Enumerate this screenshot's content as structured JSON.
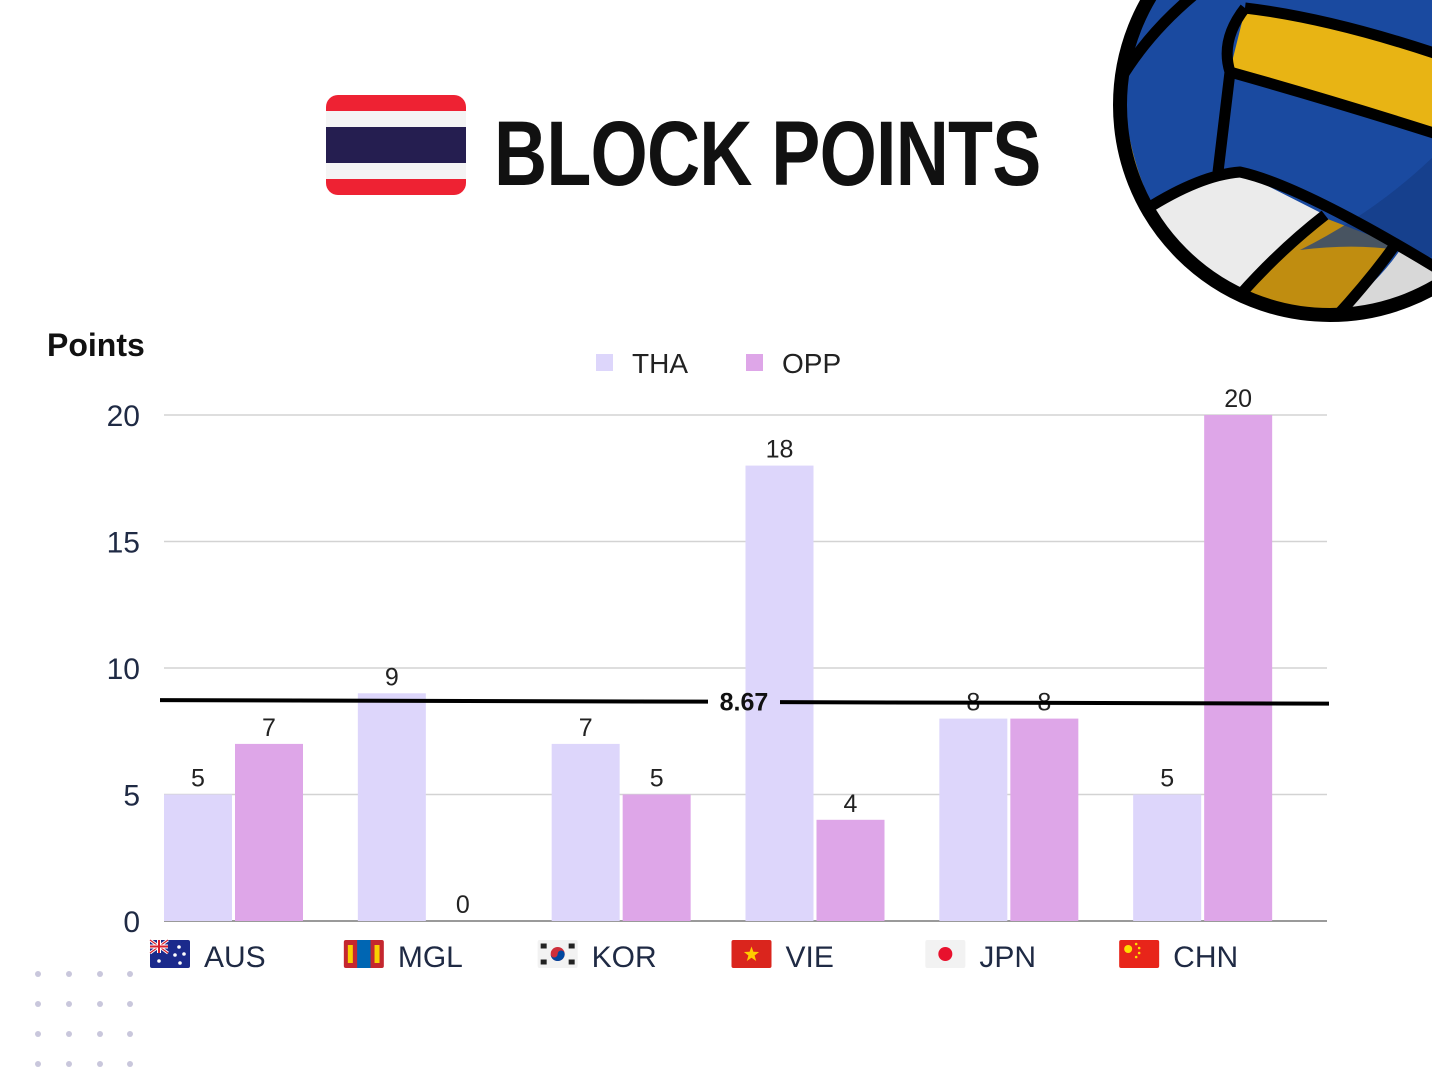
{
  "header": {
    "title": "BLOCK POINTS",
    "flag_icon": "thailand-flag-icon",
    "decoration_icon": "volleyball-icon"
  },
  "colors": {
    "tha": "#ddd6fb",
    "opp": "#dea6e8",
    "average_line": "#000000",
    "grid": "#d3d3d3",
    "text": "#222222"
  },
  "chart_data": {
    "type": "bar",
    "ylabel": "Points",
    "ylim": [
      0,
      20
    ],
    "yticks": [
      "0",
      "5",
      "10",
      "15",
      "20"
    ],
    "grid": true,
    "legend_position": "top-center",
    "categories": [
      "AUS",
      "MGL",
      "KOR",
      "VIE",
      "JPN",
      "CHN"
    ],
    "category_flag_icons": [
      "australia-flag-icon",
      "mongolia-flag-icon",
      "south-korea-flag-icon",
      "vietnam-flag-icon",
      "japan-flag-icon",
      "china-flag-icon"
    ],
    "series": [
      {
        "name": "THA",
        "values": [
          5,
          9,
          7,
          18,
          8,
          5
        ]
      },
      {
        "name": "OPP",
        "values": [
          7,
          0,
          5,
          4,
          8,
          20
        ]
      }
    ],
    "reference_line": {
      "value": 8.67,
      "label": "8.67"
    }
  }
}
